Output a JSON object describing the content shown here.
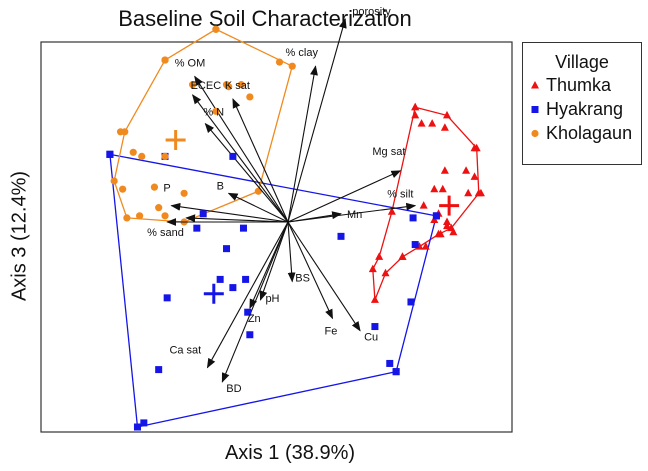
{
  "chart_data": {
    "type": "scatter",
    "title": "Baseline Soil Characterization",
    "xlabel": "Axis 1 (38.9%)",
    "ylabel": "Axis 3 (12.4%)",
    "xlim": [
      -1.0,
      1.0
    ],
    "ylim": [
      -1.0,
      1.0
    ],
    "grid": false,
    "legend": {
      "title": "Village",
      "position": "right"
    },
    "series": [
      {
        "name": "Thumka",
        "color": "#ee1111",
        "marker": "triangle",
        "points": [
          [
            0.6,
            0.52
          ],
          [
            0.63,
            0.48
          ],
          [
            0.68,
            0.48
          ],
          [
            0.74,
            0.46
          ],
          [
            0.88,
            0.36
          ],
          [
            0.74,
            0.25
          ],
          [
            0.84,
            0.25
          ],
          [
            0.88,
            0.22
          ],
          [
            0.85,
            0.14
          ],
          [
            0.91,
            0.14
          ],
          [
            0.69,
            0.16
          ],
          [
            0.73,
            0.16
          ],
          [
            0.64,
            0.08
          ],
          [
            0.69,
            0.01
          ],
          [
            0.75,
            0.0
          ],
          [
            0.54,
            -0.17
          ],
          [
            0.65,
            -0.12
          ],
          [
            0.72,
            -0.06
          ],
          [
            0.78,
            -0.05
          ],
          [
            0.75,
            -0.02
          ],
          [
            0.71,
            0.04
          ]
        ],
        "centroid": [
          0.76,
          0.08
        ],
        "hull": [
          [
            0.6,
            0.56
          ],
          [
            0.75,
            0.52
          ],
          [
            0.89,
            0.36
          ],
          [
            0.9,
            0.14
          ],
          [
            0.77,
            -0.03
          ],
          [
            0.71,
            -0.06
          ],
          [
            0.62,
            -0.12
          ],
          [
            0.54,
            -0.17
          ],
          [
            0.46,
            -0.25
          ],
          [
            0.41,
            -0.38
          ],
          [
            0.4,
            -0.23
          ],
          [
            0.43,
            -0.17
          ],
          [
            0.49,
            0.05
          ],
          [
            0.6,
            0.56
          ]
        ]
      },
      {
        "name": "Hyakrang",
        "color": "#1515e8",
        "marker": "square",
        "points": [
          [
            -0.84,
            0.33
          ],
          [
            -0.26,
            0.32
          ],
          [
            -0.58,
            0.32
          ],
          [
            -0.21,
            -0.03
          ],
          [
            -0.4,
            0.04
          ],
          [
            -0.43,
            -0.03
          ],
          [
            -0.29,
            -0.13
          ],
          [
            -0.32,
            -0.28
          ],
          [
            -0.2,
            -0.28
          ],
          [
            -0.26,
            -0.32
          ],
          [
            -0.19,
            -0.44
          ],
          [
            -0.18,
            -0.55
          ],
          [
            -0.57,
            -0.37
          ],
          [
            0.25,
            -0.07
          ],
          [
            0.41,
            -0.51
          ],
          [
            0.58,
            -0.39
          ],
          [
            0.59,
            0.02
          ],
          [
            0.6,
            -0.11
          ],
          [
            0.7,
            0.03
          ],
          [
            0.48,
            -0.69
          ],
          [
            0.51,
            -0.73
          ],
          [
            -0.68,
            -0.98
          ],
          [
            -0.71,
            -1.0
          ],
          [
            -0.61,
            -0.72
          ]
        ],
        "centroid": [
          -0.35,
          -0.35
        ],
        "hull": [
          [
            -0.84,
            0.33
          ],
          [
            0.7,
            0.03
          ],
          [
            0.51,
            -0.73
          ],
          [
            -0.71,
            -1.0
          ],
          [
            -0.84,
            0.33
          ]
        ]
      },
      {
        "name": "Kholagaun",
        "color": "#f08a1e",
        "marker": "circle",
        "points": [
          [
            -0.34,
            0.94
          ],
          [
            -0.58,
            0.79
          ],
          [
            -0.45,
            0.67
          ],
          [
            -0.29,
            0.67
          ],
          [
            -0.28,
            0.66
          ],
          [
            -0.22,
            0.67
          ],
          [
            -0.18,
            0.61
          ],
          [
            -0.34,
            0.54
          ],
          [
            -0.04,
            0.78
          ],
          [
            -0.79,
            0.44
          ],
          [
            -0.73,
            0.34
          ],
          [
            -0.69,
            0.32
          ],
          [
            -0.58,
            0.32
          ],
          [
            -0.78,
            0.16
          ],
          [
            -0.63,
            0.17
          ],
          [
            -0.49,
            0.14
          ],
          [
            -0.7,
            0.03
          ],
          [
            -0.61,
            0.07
          ],
          [
            -0.58,
            0.03
          ]
        ],
        "centroid": [
          -0.53,
          0.4
        ],
        "hull": [
          [
            -0.58,
            0.79
          ],
          [
            -0.34,
            0.94
          ],
          [
            0.02,
            0.76
          ],
          [
            -0.14,
            0.15
          ],
          [
            -0.49,
            0.0
          ],
          [
            -0.76,
            0.02
          ],
          [
            -0.82,
            0.2
          ],
          [
            -0.77,
            0.44
          ],
          [
            -0.58,
            0.79
          ]
        ]
      }
    ],
    "vectors": [
      {
        "label": "porosity",
        "x": 0.27,
        "y": 0.99
      },
      {
        "label": "% clay",
        "x": 0.13,
        "y": 0.76
      },
      {
        "label": "K sat",
        "x": -0.26,
        "y": 0.6
      },
      {
        "label": "% OM",
        "x": -0.44,
        "y": 0.71
      },
      {
        "label": "ECEC",
        "x": -0.45,
        "y": 0.62
      },
      {
        "label": "% N",
        "x": -0.39,
        "y": 0.48
      },
      {
        "label": "B",
        "x": -0.28,
        "y": 0.14
      },
      {
        "label": "P",
        "x": -0.55,
        "y": 0.08
      },
      {
        "label": "",
        "x": -0.48,
        "y": 0.02
      },
      {
        "label": "% sand",
        "x": -0.57,
        "y": 0.0
      },
      {
        "label": "Mg sat",
        "x": 0.53,
        "y": 0.25
      },
      {
        "label": "% silt",
        "x": 0.6,
        "y": 0.08
      },
      {
        "label": "Mn",
        "x": 0.25,
        "y": 0.04
      },
      {
        "label": "BS",
        "x": 0.02,
        "y": -0.29
      },
      {
        "label": "pH",
        "x": -0.13,
        "y": -0.38
      },
      {
        "label": "Zn",
        "x": -0.18,
        "y": -0.42
      },
      {
        "label": "Fe",
        "x": 0.21,
        "y": -0.47
      },
      {
        "label": "Cu",
        "x": 0.34,
        "y": -0.53
      },
      {
        "label": "Ca sat",
        "x": -0.38,
        "y": -0.71
      },
      {
        "label": "BD",
        "x": -0.31,
        "y": -0.78
      }
    ]
  }
}
